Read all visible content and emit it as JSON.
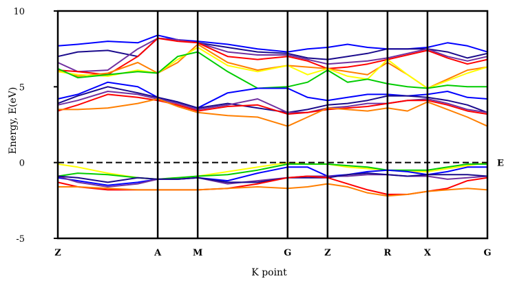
{
  "chart_data": {
    "type": "line",
    "title": "",
    "xlabel": "K point",
    "ylabel": "Energy, E(eV)",
    "ylim": [
      -5,
      10
    ],
    "yticks": [
      10,
      5,
      0,
      -5
    ],
    "ytick_labels": [
      "10",
      "5",
      "0",
      "-5"
    ],
    "kpoints": [
      "Z",
      "A",
      "M",
      "G",
      "Z",
      "R",
      "X",
      "G"
    ],
    "kpoint_x": [
      0,
      1,
      1.4,
      2.3,
      2.7,
      3.3,
      3.7,
      4.3
    ],
    "xlim": [
      0,
      4.3
    ],
    "fermi_level": 0,
    "fermi_label": "E",
    "grid": false,
    "legend": "none",
    "series": [
      {
        "color": "#0000ff",
        "x": [
          0,
          0.2,
          0.5,
          0.8,
          1.0,
          1.2,
          1.4,
          1.7,
          2.0,
          2.3,
          2.5,
          2.7,
          2.9,
          3.1,
          3.3,
          3.5,
          3.7,
          3.9,
          4.1,
          4.3
        ],
        "y": [
          7.7,
          7.8,
          8.0,
          7.9,
          8.4,
          8.1,
          8.0,
          7.8,
          7.5,
          7.3,
          7.5,
          7.6,
          7.8,
          7.6,
          7.5,
          7.5,
          7.6,
          7.9,
          7.7,
          7.3
        ]
      },
      {
        "color": "#1a0a8c",
        "x": [
          0,
          0.2,
          0.5,
          0.8,
          1.0,
          1.2,
          1.4,
          1.7,
          2.0,
          2.3,
          2.5,
          2.7,
          2.9,
          3.1,
          3.3,
          3.5,
          3.7,
          3.9,
          4.1,
          4.3
        ],
        "y": [
          7.0,
          7.3,
          7.4,
          7.0,
          8.2,
          8.1,
          7.9,
          7.6,
          7.3,
          7.2,
          6.9,
          6.8,
          7.0,
          7.2,
          7.5,
          7.5,
          7.5,
          7.3,
          6.9,
          7.2
        ]
      },
      {
        "color": "#7030a0",
        "x": [
          0,
          0.2,
          0.5,
          0.8,
          1.0,
          1.2,
          1.4,
          1.7,
          2.0,
          2.3,
          2.5,
          2.7,
          2.9,
          3.1,
          3.3,
          3.5,
          3.7,
          3.9,
          4.1,
          4.3
        ],
        "y": [
          6.6,
          6.0,
          6.1,
          7.5,
          8.2,
          8.1,
          7.9,
          7.3,
          7.1,
          7.1,
          6.8,
          6.5,
          6.6,
          6.7,
          6.9,
          7.2,
          7.5,
          7.0,
          6.7,
          7.0
        ]
      },
      {
        "color": "#ff0000",
        "x": [
          0,
          0.2,
          0.5,
          0.8,
          1.0,
          1.2,
          1.4,
          1.7,
          2.0,
          2.3,
          2.5,
          2.7,
          2.9,
          3.1,
          3.3,
          3.5,
          3.7,
          3.9,
          4.1,
          4.3
        ],
        "y": [
          6.1,
          6.0,
          5.8,
          7.0,
          8.2,
          8.0,
          7.9,
          7.0,
          6.8,
          7.0,
          6.7,
          6.2,
          6.3,
          6.5,
          6.8,
          7.1,
          7.4,
          6.9,
          6.5,
          6.8
        ]
      },
      {
        "color": "#ff7f00",
        "x": [
          0,
          0.2,
          0.5,
          0.8,
          1.0,
          1.2,
          1.4,
          1.7,
          2.0,
          2.3,
          2.5,
          2.7,
          2.9,
          3.1,
          3.3,
          3.5,
          3.7,
          3.9,
          4.1,
          4.3
        ],
        "y": [
          6.1,
          5.7,
          5.9,
          6.6,
          5.9,
          6.6,
          7.8,
          6.6,
          6.1,
          6.4,
          6.3,
          6.2,
          6.0,
          5.8,
          6.6,
          5.8,
          4.9,
          5.5,
          6.1,
          6.3
        ]
      },
      {
        "color": "#ffff00",
        "x": [
          0,
          0.2,
          0.5,
          0.8,
          1.0,
          1.2,
          1.4,
          1.7,
          2.0,
          2.3,
          2.5,
          2.7,
          2.9,
          3.1,
          3.3,
          3.5,
          3.7,
          3.9,
          4.1,
          4.3
        ],
        "y": [
          6.0,
          5.8,
          5.7,
          6.1,
          5.9,
          6.8,
          7.6,
          6.4,
          6.0,
          6.4,
          5.8,
          6.2,
          5.7,
          5.5,
          6.8,
          5.8,
          4.9,
          5.4,
          5.9,
          6.3
        ]
      },
      {
        "color": "#00cc00",
        "x": [
          0,
          0.2,
          0.5,
          0.8,
          1.0,
          1.2,
          1.4,
          1.7,
          2.0,
          2.3,
          2.5,
          2.7,
          2.9,
          3.1,
          3.3,
          3.5,
          3.7,
          3.9,
          4.1,
          4.3
        ],
        "y": [
          6.2,
          5.6,
          5.8,
          6.0,
          5.9,
          7.0,
          7.3,
          6.0,
          4.9,
          5.0,
          5.3,
          6.1,
          5.3,
          5.5,
          5.2,
          5.0,
          4.9,
          5.1,
          5.0,
          5.0
        ]
      },
      {
        "color": "#0000ff",
        "x": [
          0,
          0.2,
          0.5,
          0.8,
          1.0,
          1.2,
          1.4,
          1.7,
          2.0,
          2.3,
          2.5,
          2.7,
          2.9,
          3.1,
          3.3,
          3.5,
          3.7,
          3.9,
          4.1,
          4.3
        ],
        "y": [
          4.2,
          4.5,
          5.3,
          5.0,
          4.3,
          4.0,
          3.6,
          4.6,
          4.9,
          4.9,
          4.3,
          4.1,
          4.3,
          4.5,
          4.5,
          4.4,
          4.5,
          4.7,
          4.3,
          4.2
        ]
      },
      {
        "color": "#1a0a8c",
        "x": [
          0,
          0.2,
          0.5,
          0.8,
          1.0,
          1.2,
          1.4,
          1.7,
          2.0,
          2.3,
          2.5,
          2.7,
          2.9,
          3.1,
          3.3,
          3.5,
          3.7,
          3.9,
          4.1,
          4.3
        ],
        "y": [
          3.9,
          4.4,
          5.0,
          4.6,
          4.3,
          4.0,
          3.6,
          3.9,
          3.6,
          3.3,
          3.5,
          3.8,
          3.9,
          4.1,
          4.4,
          4.4,
          4.3,
          4.1,
          3.8,
          3.3
        ]
      },
      {
        "color": "#7030a0",
        "x": [
          0,
          0.2,
          0.5,
          0.8,
          1.0,
          1.2,
          1.4,
          1.7,
          2.0,
          2.3,
          2.5,
          2.7,
          2.9,
          3.1,
          3.3,
          3.5,
          3.7,
          3.9,
          4.1,
          4.3
        ],
        "y": [
          3.8,
          4.1,
          4.7,
          4.5,
          4.2,
          3.9,
          3.5,
          3.8,
          4.2,
          3.3,
          3.3,
          3.6,
          3.7,
          3.9,
          3.9,
          4.1,
          4.2,
          3.9,
          3.5,
          3.3
        ]
      },
      {
        "color": "#ff0000",
        "x": [
          0,
          0.2,
          0.5,
          0.8,
          1.0,
          1.2,
          1.4,
          1.7,
          2.0,
          2.3,
          2.5,
          2.7,
          2.9,
          3.1,
          3.3,
          3.5,
          3.7,
          3.9,
          4.1,
          4.3
        ],
        "y": [
          3.4,
          3.8,
          4.5,
          4.3,
          4.1,
          3.8,
          3.4,
          3.7,
          3.8,
          3.2,
          3.3,
          3.5,
          3.6,
          3.7,
          3.9,
          4.1,
          4.1,
          3.8,
          3.4,
          3.2
        ]
      },
      {
        "color": "#ff7f00",
        "x": [
          0,
          0.2,
          0.5,
          0.8,
          1.0,
          1.2,
          1.4,
          1.7,
          2.0,
          2.3,
          2.5,
          2.7,
          2.9,
          3.1,
          3.3,
          3.5,
          3.7,
          3.9,
          4.1,
          4.3
        ],
        "y": [
          3.5,
          3.5,
          3.6,
          3.9,
          4.2,
          3.7,
          3.3,
          3.1,
          3.0,
          2.4,
          3.0,
          3.6,
          3.5,
          3.4,
          3.6,
          3.4,
          4.0,
          3.5,
          3.0,
          2.4
        ]
      },
      {
        "color": "#ffff00",
        "x": [
          0,
          0.2,
          0.5,
          0.8,
          1.0,
          1.2,
          1.4,
          1.7,
          2.0,
          2.3,
          2.5,
          2.7,
          2.9,
          3.1,
          3.3,
          3.5,
          3.7,
          3.9,
          4.1,
          4.3
        ],
        "y": [
          -0.1,
          -0.3,
          -0.7,
          -1.0,
          -1.1,
          -1.0,
          -0.9,
          -0.6,
          -0.3,
          0.0,
          -0.1,
          -0.1,
          -0.3,
          -0.4,
          -0.5,
          -0.6,
          -0.6,
          -0.4,
          -0.2,
          0.0
        ]
      },
      {
        "color": "#00cc00",
        "x": [
          0,
          0.2,
          0.5,
          0.8,
          1.0,
          1.2,
          1.4,
          1.7,
          2.0,
          2.3,
          2.5,
          2.7,
          2.9,
          3.1,
          3.3,
          3.5,
          3.7,
          3.9,
          4.1,
          4.3
        ],
        "y": [
          -0.9,
          -0.7,
          -0.8,
          -1.0,
          -1.1,
          -1.0,
          -0.9,
          -0.8,
          -0.5,
          -0.1,
          -0.1,
          -0.1,
          -0.2,
          -0.3,
          -0.5,
          -0.5,
          -0.5,
          -0.3,
          -0.1,
          -0.1
        ]
      },
      {
        "color": "#0000ff",
        "x": [
          0,
          0.2,
          0.5,
          0.8,
          1.0,
          1.2,
          1.4,
          1.7,
          2.0,
          2.3,
          2.5,
          2.7,
          2.9,
          3.1,
          3.3,
          3.5,
          3.7,
          3.9,
          4.1,
          4.3
        ],
        "y": [
          -1.0,
          -1.2,
          -1.5,
          -1.3,
          -1.1,
          -1.1,
          -1.0,
          -1.2,
          -0.7,
          -0.3,
          -0.3,
          -0.9,
          -0.8,
          -0.6,
          -0.5,
          -0.6,
          -0.8,
          -0.6,
          -0.3,
          -0.3
        ]
      },
      {
        "color": "#7030a0",
        "x": [
          0,
          0.2,
          0.5,
          0.8,
          1.0,
          1.2,
          1.4,
          1.7,
          2.0,
          2.3,
          2.5,
          2.7,
          2.9,
          3.1,
          3.3,
          3.5,
          3.7,
          3.9,
          4.1,
          4.3
        ],
        "y": [
          -0.9,
          -1.3,
          -1.6,
          -1.4,
          -1.1,
          -1.1,
          -1.0,
          -1.4,
          -1.2,
          -1.0,
          -0.9,
          -0.9,
          -0.9,
          -0.8,
          -0.8,
          -0.9,
          -0.9,
          -1.1,
          -1.0,
          -0.9
        ]
      },
      {
        "color": "#1a0a8c",
        "x": [
          0,
          0.2,
          0.5,
          0.8,
          1.0,
          1.2,
          1.4,
          1.7,
          2.0,
          2.3,
          2.5,
          2.7,
          2.9,
          3.1,
          3.3,
          3.5,
          3.7,
          3.9,
          4.1,
          4.3
        ],
        "y": [
          -0.9,
          -1.0,
          -1.3,
          -1.0,
          -1.1,
          -1.1,
          -1.0,
          -1.3,
          -1.3,
          -1.0,
          -1.0,
          -1.0,
          -0.8,
          -0.7,
          -0.8,
          -0.9,
          -0.8,
          -0.8,
          -0.8,
          -0.9
        ]
      },
      {
        "color": "#ff0000",
        "x": [
          0,
          0.2,
          0.5,
          0.8,
          1.0,
          1.2,
          1.4,
          1.7,
          2.0,
          2.3,
          2.5,
          2.7,
          2.9,
          3.1,
          3.3,
          3.5,
          3.7,
          3.9,
          4.1,
          4.3
        ],
        "y": [
          -1.3,
          -1.6,
          -1.8,
          -1.8,
          -1.8,
          -1.8,
          -1.8,
          -1.7,
          -1.4,
          -1.0,
          -0.9,
          -1.0,
          -1.4,
          -1.8,
          -2.1,
          -2.1,
          -1.9,
          -1.7,
          -1.2,
          -1.0
        ]
      },
      {
        "color": "#ff7f00",
        "x": [
          0,
          0.2,
          0.5,
          0.8,
          1.0,
          1.2,
          1.4,
          1.7,
          2.0,
          2.3,
          2.5,
          2.7,
          2.9,
          3.1,
          3.3,
          3.5,
          3.7,
          3.9,
          4.1,
          4.3
        ],
        "y": [
          -1.6,
          -1.6,
          -1.7,
          -1.8,
          -1.8,
          -1.8,
          -1.8,
          -1.7,
          -1.6,
          -1.7,
          -1.6,
          -1.4,
          -1.6,
          -2.0,
          -2.2,
          -2.1,
          -1.9,
          -1.8,
          -1.7,
          -1.8
        ]
      }
    ]
  }
}
